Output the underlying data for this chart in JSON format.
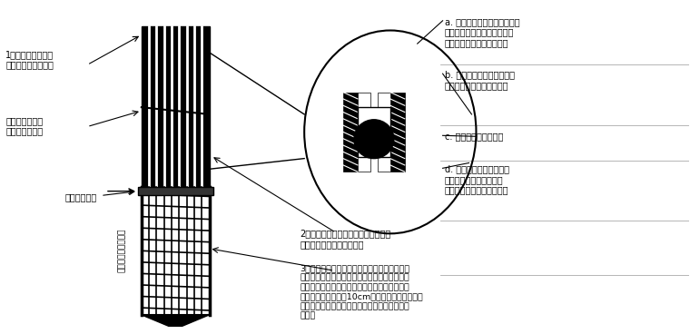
{
  "bg_color": "#ffffff",
  "label_a": "a. 主筋的复合脱松套，必须宽\n松，不得紧贴或握裹带肋之主\n筋，否则日后桩头提不动。",
  "label_b": "b. 绕主筋外侧水平一圈的截\n断箍，将复合脱松套勒住。",
  "label_c": "c. 用扎丝扎紧截断箍。",
  "label_d": "d. 主筋的复合脱松套，其\n下方必须略深一点，水平\n的截断箍，正好将其绕住。",
  "label_1": "1、桩顶所有主筋必\n须顺直，不可弯折。",
  "label_2": "2、破桩位置以上的所有主筋，外套复\n合脱松套，用像皮筋扎紧。",
  "label_3": "3、在需破桩头的高程位置，绕桩周一圈，预埋\n截断箍（即钢丝绳外套复合脱松套，绕桩的主筋\n外侧一圈，内填细砂或其他填充物，以占体积。\n钢丝绳端头余留长度10cm，以便日后提拎）。将\n截断箍绑在主筋的保险套上并压住，此处用扎丝\n扎紧。",
  "label_break": "破桩位置（即截\n断箍所在位置）",
  "label_design": "设计桩顶标高",
  "label_embed": "基桩嵌入承台的部分"
}
